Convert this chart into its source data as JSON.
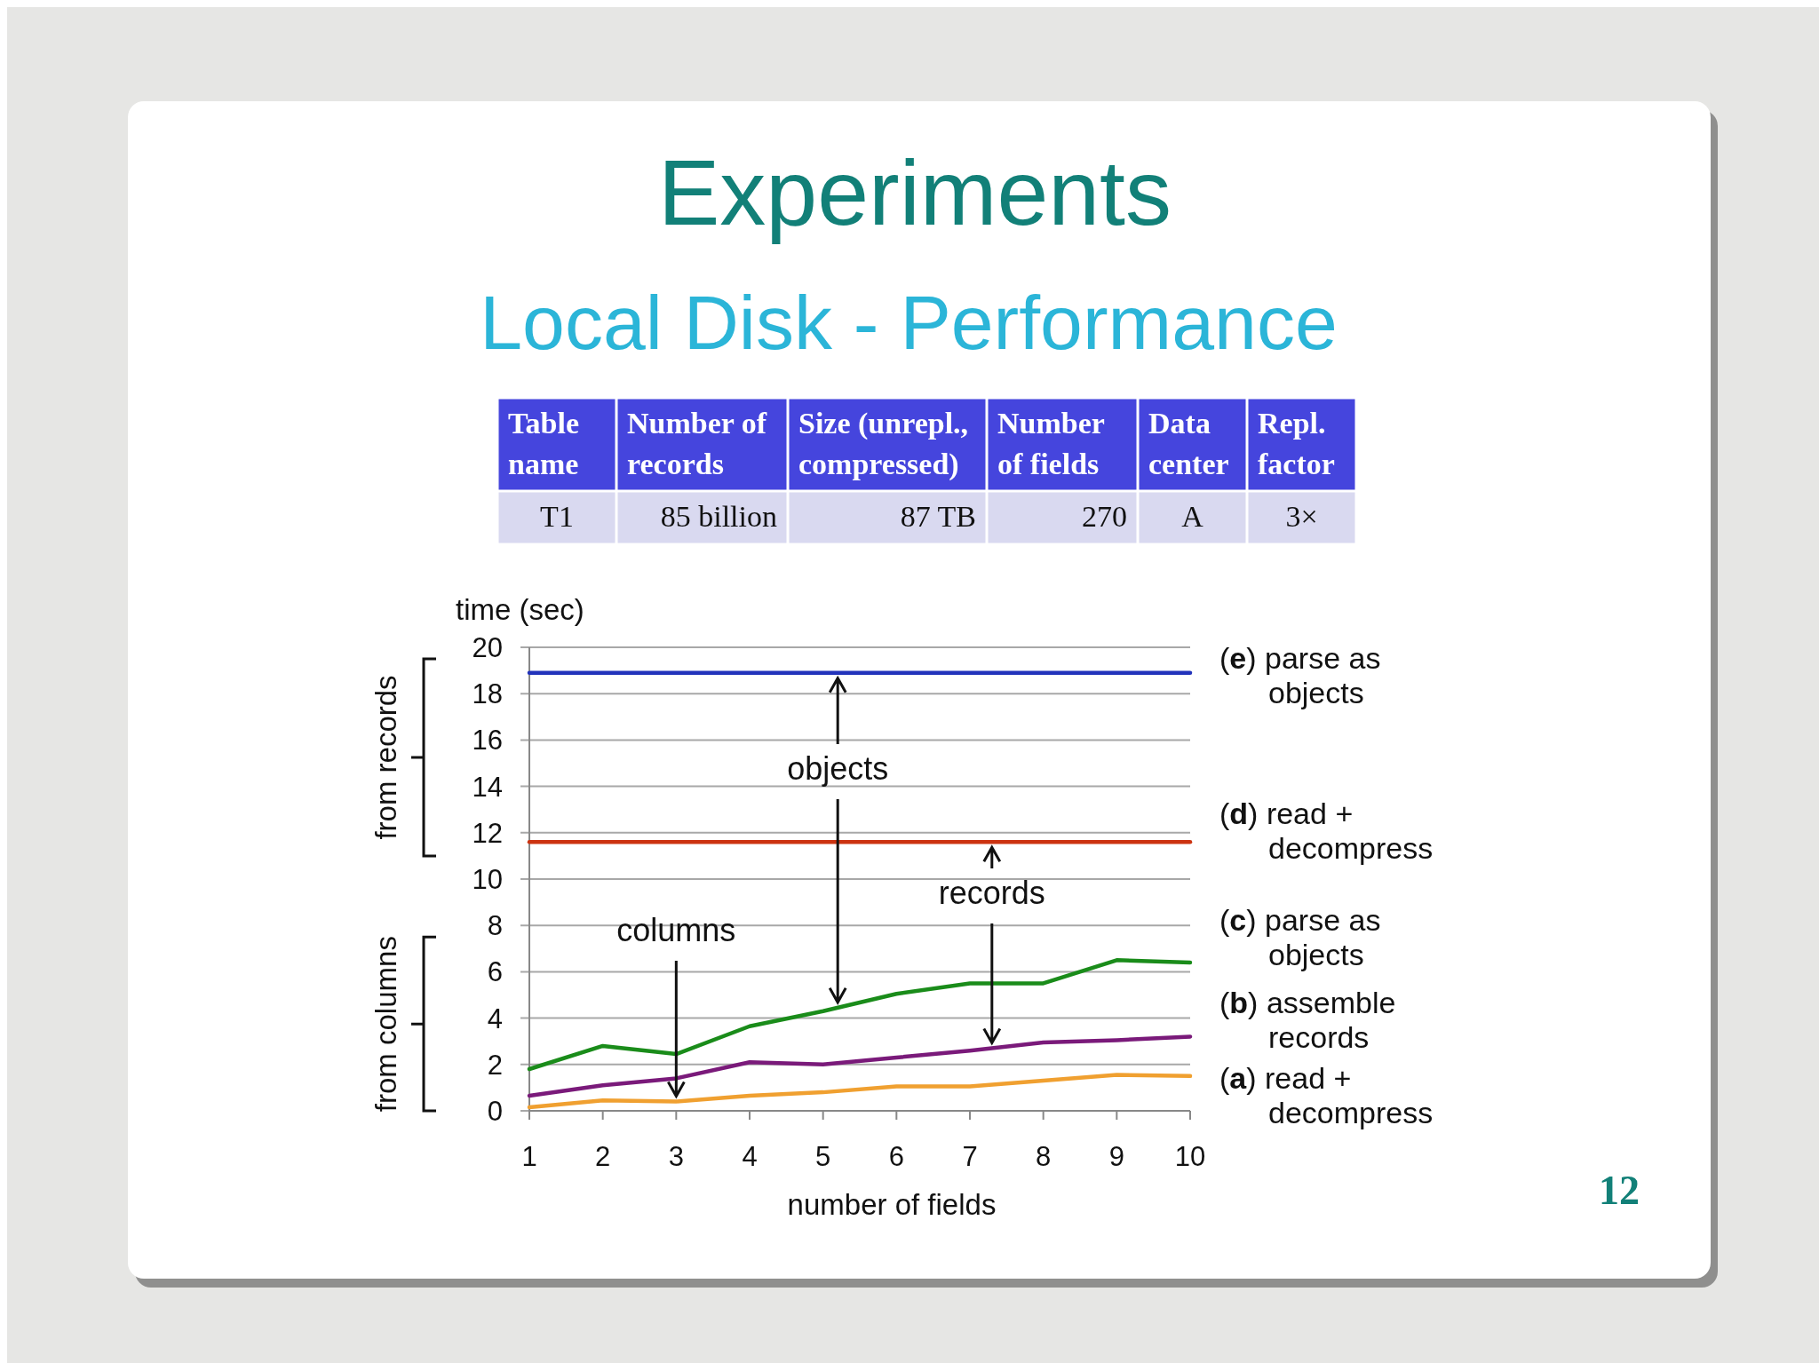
{
  "chart_data": [
    {
      "type": "other",
      "title": "Experiments",
      "subtitle": "Local Disk - Performance",
      "annotations": [
        "Table\nname",
        "Number of\nrecords",
        "Size (unrepl.,\ncompressed)",
        "Number\nof fields",
        "Data\ncenter",
        "Repl.\nfactor",
        "T1",
        "85 billion",
        "87 TB",
        "270",
        "A",
        "3×",
        "12"
      ]
    },
    {
      "type": "line",
      "xlabel": "number of fields",
      "ylabel": "time (sec)",
      "x": [
        1,
        2,
        3,
        4,
        5,
        6,
        7,
        8,
        9,
        10
      ],
      "xlim": [
        1,
        10
      ],
      "xticks": [
        1,
        2,
        3,
        4,
        5,
        6,
        7,
        8,
        9,
        10
      ],
      "ylim": [
        0,
        20
      ],
      "yticks": [
        0,
        2,
        4,
        6,
        8,
        10,
        12,
        14,
        16,
        18,
        20
      ],
      "grid": "y",
      "legend": "right",
      "marker": "none",
      "line_style": "solid",
      "series": [
        {
          "name": "(e) parse as objects",
          "color": "#2233bb",
          "values": [
            18.9,
            18.9,
            18.9,
            18.9,
            18.9,
            18.9,
            18.9,
            18.9,
            18.9,
            18.9
          ]
        },
        {
          "name": "(d) read + decompress",
          "color": "#cc3311",
          "values": [
            11.6,
            11.6,
            11.6,
            11.6,
            11.6,
            11.6,
            11.6,
            11.6,
            11.6,
            11.6
          ]
        },
        {
          "name": "(c) parse as objects",
          "color": "#1a8c1a",
          "values": [
            1.8,
            2.8,
            2.45,
            3.65,
            4.3,
            5.05,
            5.5,
            5.5,
            6.5,
            6.4
          ]
        },
        {
          "name": "(b) assemble records",
          "color": "#7a1a7a",
          "values": [
            0.65,
            1.1,
            1.4,
            2.1,
            2.0,
            2.3,
            2.6,
            2.95,
            3.05,
            3.2
          ]
        },
        {
          "name": "(a) read + decompress",
          "color": "#f0a030",
          "values": [
            0.15,
            0.45,
            0.4,
            0.65,
            0.8,
            1.05,
            1.05,
            1.3,
            1.55,
            1.5
          ]
        }
      ],
      "annotations": [
        {
          "text": "objects",
          "x": 5.2,
          "y": 18.9
        },
        {
          "text": "records",
          "x": 7.3,
          "y": 11.6
        },
        {
          "text": "columns",
          "x": 3,
          "y": 0.4
        },
        "from records",
        "from columns"
      ]
    }
  ]
}
